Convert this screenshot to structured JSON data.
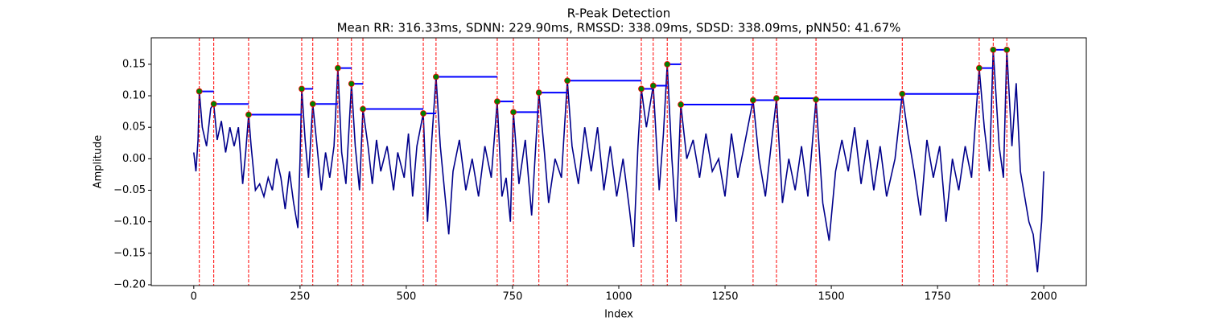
{
  "chart_data": {
    "type": "line",
    "title": "R-Peak Detection",
    "subtitle": "Mean RR: 316.33ms, SDNN: 229.90ms, RMSSD: 338.09ms, SDSD: 338.09ms, pNN50: 41.67%",
    "xlabel": "Index",
    "ylabel": "Amplitude",
    "xlim": [
      -100,
      2100
    ],
    "ylim": [
      -0.2013,
      0.192
    ],
    "xticks": [
      0,
      250,
      500,
      750,
      1000,
      1250,
      1500,
      1750,
      2000
    ],
    "yticks": [
      {
        "value": -0.2,
        "label": "−0.20"
      },
      {
        "value": -0.15,
        "label": "−0.15"
      },
      {
        "value": -0.1,
        "label": "−0.10"
      },
      {
        "value": -0.05,
        "label": "−0.05"
      },
      {
        "value": 0,
        "label": "0.00"
      },
      {
        "value": 0.05,
        "label": "0.05"
      },
      {
        "value": 0.1,
        "label": "0.10"
      },
      {
        "value": 0.15,
        "label": "0.15"
      }
    ],
    "signal": {
      "color": "#00008b",
      "x": [
        0,
        5,
        10,
        13,
        20,
        30,
        40,
        47,
        55,
        65,
        75,
        85,
        95,
        105,
        115,
        122,
        129,
        135,
        145,
        155,
        165,
        175,
        185,
        195,
        205,
        215,
        225,
        235,
        245,
        250,
        254,
        262,
        270,
        280,
        290,
        300,
        310,
        320,
        330,
        339,
        348,
        358,
        371,
        380,
        390,
        398,
        410,
        420,
        430,
        440,
        455,
        470,
        480,
        495,
        505,
        515,
        525,
        540,
        550,
        560,
        570,
        580,
        590,
        600,
        610,
        625,
        640,
        655,
        670,
        685,
        700,
        714,
        725,
        735,
        745,
        752,
        765,
        780,
        795,
        812,
        825,
        835,
        850,
        865,
        879,
        890,
        905,
        920,
        935,
        950,
        965,
        980,
        995,
        1010,
        1025,
        1035,
        1045,
        1053,
        1065,
        1081,
        1095,
        1105,
        1114,
        1125,
        1135,
        1146,
        1160,
        1175,
        1190,
        1205,
        1220,
        1235,
        1250,
        1265,
        1280,
        1295,
        1316,
        1330,
        1345,
        1360,
        1371,
        1385,
        1400,
        1415,
        1430,
        1445,
        1464,
        1480,
        1495,
        1510,
        1525,
        1540,
        1555,
        1570,
        1585,
        1600,
        1615,
        1630,
        1650,
        1667,
        1680,
        1695,
        1710,
        1725,
        1740,
        1755,
        1770,
        1785,
        1800,
        1815,
        1830,
        1848,
        1860,
        1872,
        1881,
        1895,
        1905,
        1913,
        1925,
        1935,
        1945,
        1955,
        1965,
        1975,
        1985,
        1995,
        2000
      ],
      "values": [
        0.01,
        -0.02,
        0.03,
        0.107,
        0.05,
        0.02,
        0.08,
        0.087,
        0.03,
        0.06,
        0.01,
        0.05,
        0.02,
        0.05,
        -0.04,
        0.01,
        0.07,
        0.02,
        -0.05,
        -0.04,
        -0.06,
        -0.03,
        -0.05,
        0.0,
        -0.03,
        -0.08,
        -0.02,
        -0.07,
        -0.11,
        0.0,
        0.111,
        0.03,
        -0.03,
        0.087,
        0.02,
        -0.05,
        0.01,
        -0.03,
        0.02,
        0.144,
        0.01,
        -0.04,
        0.119,
        0.02,
        -0.05,
        0.079,
        0.02,
        -0.04,
        0.03,
        -0.02,
        0.02,
        -0.05,
        0.01,
        -0.03,
        0.04,
        -0.06,
        0.02,
        0.072,
        -0.1,
        0.03,
        0.13,
        0.02,
        -0.05,
        -0.12,
        -0.02,
        0.03,
        -0.05,
        0.0,
        -0.06,
        0.02,
        -0.03,
        0.091,
        -0.06,
        -0.03,
        -0.1,
        0.074,
        -0.04,
        0.03,
        -0.09,
        0.105,
        0.01,
        -0.07,
        0.0,
        -0.03,
        0.124,
        0.02,
        -0.04,
        0.05,
        -0.02,
        0.05,
        -0.05,
        0.02,
        -0.06,
        0.0,
        -0.08,
        -0.14,
        0.02,
        0.111,
        0.05,
        0.116,
        -0.05,
        0.04,
        0.15,
        0.0,
        -0.1,
        0.086,
        0.0,
        0.03,
        -0.03,
        0.04,
        -0.02,
        0.0,
        -0.06,
        0.04,
        -0.03,
        0.02,
        0.093,
        0.0,
        -0.06,
        0.03,
        0.096,
        -0.07,
        0.0,
        -0.05,
        0.02,
        -0.06,
        0.094,
        -0.07,
        -0.13,
        -0.02,
        0.03,
        -0.02,
        0.05,
        -0.04,
        0.03,
        -0.05,
        0.02,
        -0.06,
        0.0,
        0.103,
        0.04,
        -0.02,
        -0.09,
        0.03,
        -0.03,
        0.02,
        -0.1,
        0.0,
        -0.05,
        0.02,
        -0.03,
        0.144,
        0.05,
        -0.02,
        0.173,
        0.02,
        -0.03,
        0.173,
        0.02,
        0.12,
        -0.02,
        -0.06,
        -0.1,
        -0.12,
        -0.18,
        -0.1,
        -0.02
      ]
    },
    "peaks": {
      "color": "#008000",
      "edge_color": "#ff0000",
      "vline_color": "#ff0000",
      "hline_color": "#0000ff",
      "x": [
        13,
        47,
        129,
        254,
        280,
        339,
        371,
        398,
        540,
        570,
        714,
        752,
        812,
        879,
        1053,
        1081,
        1114,
        1146,
        1316,
        1371,
        1464,
        1667,
        1848,
        1881,
        1913
      ],
      "values": [
        0.107,
        0.087,
        0.07,
        0.111,
        0.087,
        0.144,
        0.119,
        0.079,
        0.072,
        0.13,
        0.091,
        0.074,
        0.105,
        0.124,
        0.111,
        0.116,
        0.15,
        0.086,
        0.093,
        0.096,
        0.094,
        0.103,
        0.144,
        0.173,
        0.173
      ]
    }
  }
}
